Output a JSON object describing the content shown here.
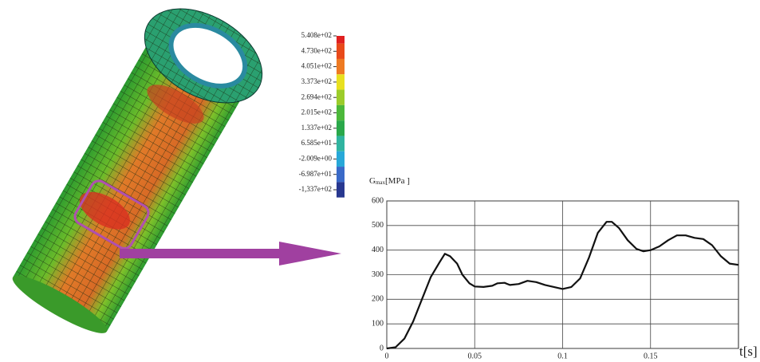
{
  "contour_legend": {
    "labels": [
      "5.408e+02",
      "4.730e+02",
      "4.051e+02",
      "3.373e+02",
      "2.694e+02",
      "2.015e+02",
      "1.337e+02",
      "6.585e+01",
      "-2.009e+00",
      "-6.987e+01",
      "-1,337e+02"
    ],
    "colors": [
      "#e02020",
      "#e84a1a",
      "#ee7a22",
      "#e8e020",
      "#9ccc2a",
      "#4cb83a",
      "#2aa84a",
      "#30b4a0",
      "#28a8d8",
      "#3a6ac8",
      "#283890"
    ]
  },
  "chart_data": {
    "type": "line",
    "ylabel_parts": [
      "G",
      "max",
      "[MPa ]"
    ],
    "xlabel": "t[s]",
    "x": [
      0,
      0.005,
      0.01,
      0.015,
      0.02,
      0.025,
      0.03,
      0.033,
      0.036,
      0.04,
      0.043,
      0.047,
      0.05,
      0.055,
      0.06,
      0.063,
      0.067,
      0.07,
      0.075,
      0.08,
      0.085,
      0.09,
      0.095,
      0.1,
      0.105,
      0.11,
      0.115,
      0.12,
      0.125,
      0.128,
      0.132,
      0.137,
      0.142,
      0.146,
      0.15,
      0.155,
      0.16,
      0.165,
      0.17,
      0.175,
      0.18,
      0.185,
      0.19,
      0.195,
      0.2
    ],
    "series": [
      {
        "color": "#111111",
        "values": [
          0,
          5,
          40,
          110,
          200,
          290,
          350,
          385,
          375,
          345,
          300,
          265,
          252,
          250,
          255,
          265,
          267,
          258,
          262,
          275,
          270,
          258,
          250,
          242,
          250,
          285,
          370,
          470,
          515,
          515,
          490,
          440,
          405,
          395,
          400,
          415,
          440,
          460,
          460,
          450,
          445,
          420,
          375,
          345,
          340
        ]
      }
    ],
    "xlim": [
      0,
      0.2
    ],
    "ylim": [
      0,
      600
    ],
    "xticks": [
      0,
      0.05,
      0.1,
      0.15
    ],
    "yticks": [
      0,
      100,
      200,
      300,
      400,
      500,
      600
    ],
    "grid": true
  }
}
